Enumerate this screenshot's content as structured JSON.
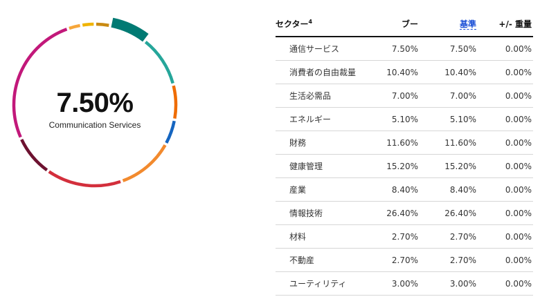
{
  "donut": {
    "center_value": "7.50%",
    "center_label": "Communication Services",
    "highlight_index": 0,
    "segments": [
      {
        "value": 7.5,
        "color": "#007a73"
      },
      {
        "value": 10.4,
        "color": "#26a69a"
      },
      {
        "value": 7.0,
        "color": "#ef6c00"
      },
      {
        "value": 5.1,
        "color": "#1565c0"
      },
      {
        "value": 11.6,
        "color": "#f28a2e"
      },
      {
        "value": 15.2,
        "color": "#d32f3c"
      },
      {
        "value": 8.4,
        "color": "#6d1230"
      },
      {
        "value": 26.4,
        "color": "#c2187a"
      },
      {
        "value": 2.7,
        "color": "#f6a63a"
      },
      {
        "value": 2.7,
        "color": "#f0b400"
      },
      {
        "value": 3.0,
        "color": "#c98a12"
      }
    ]
  },
  "table": {
    "headers": {
      "sector": "セクター",
      "sector_sup": "4",
      "fund": "ブー",
      "benchmark": "基準",
      "diff": "+/- 重量"
    },
    "rows": [
      {
        "sector": "通信サービス",
        "fund": "7.50%",
        "benchmark": "7.50%",
        "diff": "0.00%"
      },
      {
        "sector": "消費者の自由裁量",
        "fund": "10.40%",
        "benchmark": "10.40%",
        "diff": "0.00%"
      },
      {
        "sector": "生活必需品",
        "fund": "7.00%",
        "benchmark": "7.00%",
        "diff": "0.00%"
      },
      {
        "sector": "エネルギー",
        "fund": "5.10%",
        "benchmark": "5.10%",
        "diff": "0.00%"
      },
      {
        "sector": "財務",
        "fund": "11.60%",
        "benchmark": "11.60%",
        "diff": "0.00%"
      },
      {
        "sector": "健康管理",
        "fund": "15.20%",
        "benchmark": "15.20%",
        "diff": "0.00%"
      },
      {
        "sector": "産業",
        "fund": "8.40%",
        "benchmark": "8.40%",
        "diff": "0.00%"
      },
      {
        "sector": "情報技術",
        "fund": "26.40%",
        "benchmark": "26.40%",
        "diff": "0.00%"
      },
      {
        "sector": "材料",
        "fund": "2.70%",
        "benchmark": "2.70%",
        "diff": "0.00%"
      },
      {
        "sector": "不動産",
        "fund": "2.70%",
        "benchmark": "2.70%",
        "diff": "0.00%"
      },
      {
        "sector": "ユーティリティ",
        "fund": "3.00%",
        "benchmark": "3.00%",
        "diff": "0.00%"
      }
    ]
  }
}
